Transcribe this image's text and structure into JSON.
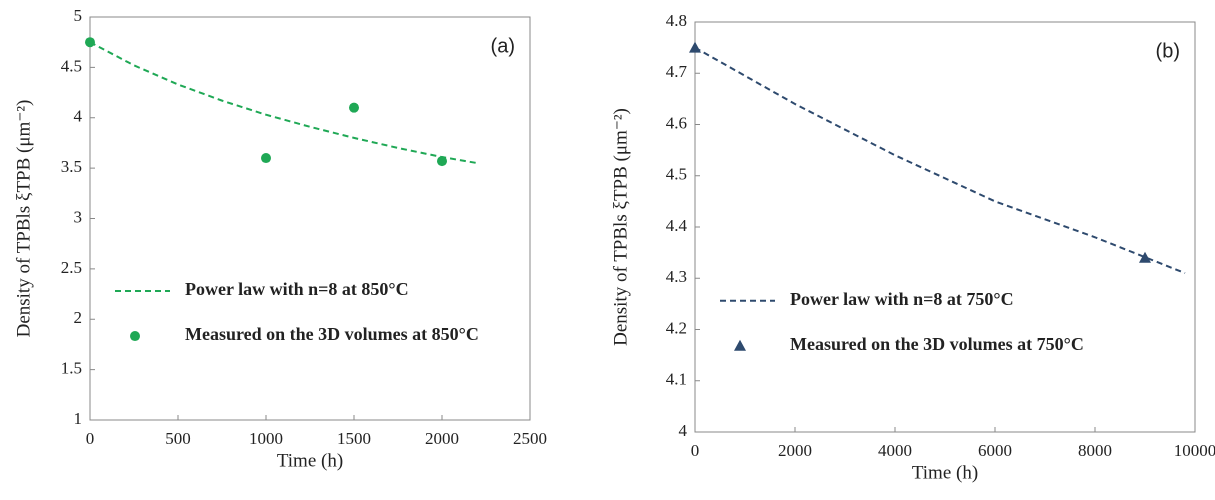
{
  "chart_data": [
    {
      "type": "line",
      "annotation": "(a)",
      "xlabel": "Time (h)",
      "ylabel": "Density of TPBls ξTPB (μm⁻²)",
      "xlim": [
        0,
        2500
      ],
      "xticks": [
        0,
        500,
        1000,
        1500,
        2000,
        2500
      ],
      "ylim": [
        1,
        5
      ],
      "yticks": [
        1,
        1.5,
        2,
        2.5,
        3,
        3.5,
        4,
        4.5,
        5
      ],
      "legend": "center left",
      "series": [
        {
          "name": "Power law with n=8 at 850°C",
          "type": "line",
          "style": "dashed",
          "color": "#1fa855",
          "x": [
            0,
            250,
            500,
            750,
            1000,
            1250,
            1500,
            1750,
            2000,
            2200
          ],
          "values": [
            4.75,
            4.52,
            4.33,
            4.17,
            4.03,
            3.91,
            3.8,
            3.7,
            3.61,
            3.55
          ]
        },
        {
          "name": "Measured on the 3D volumes at 850°C",
          "type": "scatter",
          "marker": "circle",
          "color": "#1fa855",
          "x": [
            0,
            1000,
            1500,
            2000
          ],
          "values": [
            4.75,
            3.6,
            4.1,
            3.57
          ]
        }
      ]
    },
    {
      "type": "line",
      "annotation": "(b)",
      "xlabel": "Time (h)",
      "ylabel": "Density of TPBls ξTPB (μm⁻²)",
      "xlim": [
        0,
        10000
      ],
      "xticks": [
        0,
        2000,
        4000,
        6000,
        8000,
        10000
      ],
      "ylim": [
        4,
        4.8
      ],
      "yticks": [
        4,
        4.1,
        4.2,
        4.3,
        4.4,
        4.5,
        4.6,
        4.7,
        4.8
      ],
      "legend": "center left",
      "series": [
        {
          "name": "Power law with n=8 at 750°C",
          "type": "line",
          "style": "dashed",
          "color": "#2e4a6e",
          "x": [
            0,
            2000,
            4000,
            6000,
            8000,
            9800
          ],
          "values": [
            4.75,
            4.64,
            4.54,
            4.45,
            4.38,
            4.31
          ]
        },
        {
          "name": "Measured on the 3D volumes at 750°C",
          "type": "scatter",
          "marker": "triangle",
          "color": "#2e4a6e",
          "x": [
            0,
            9000
          ],
          "values": [
            4.75,
            4.34
          ]
        }
      ]
    }
  ]
}
